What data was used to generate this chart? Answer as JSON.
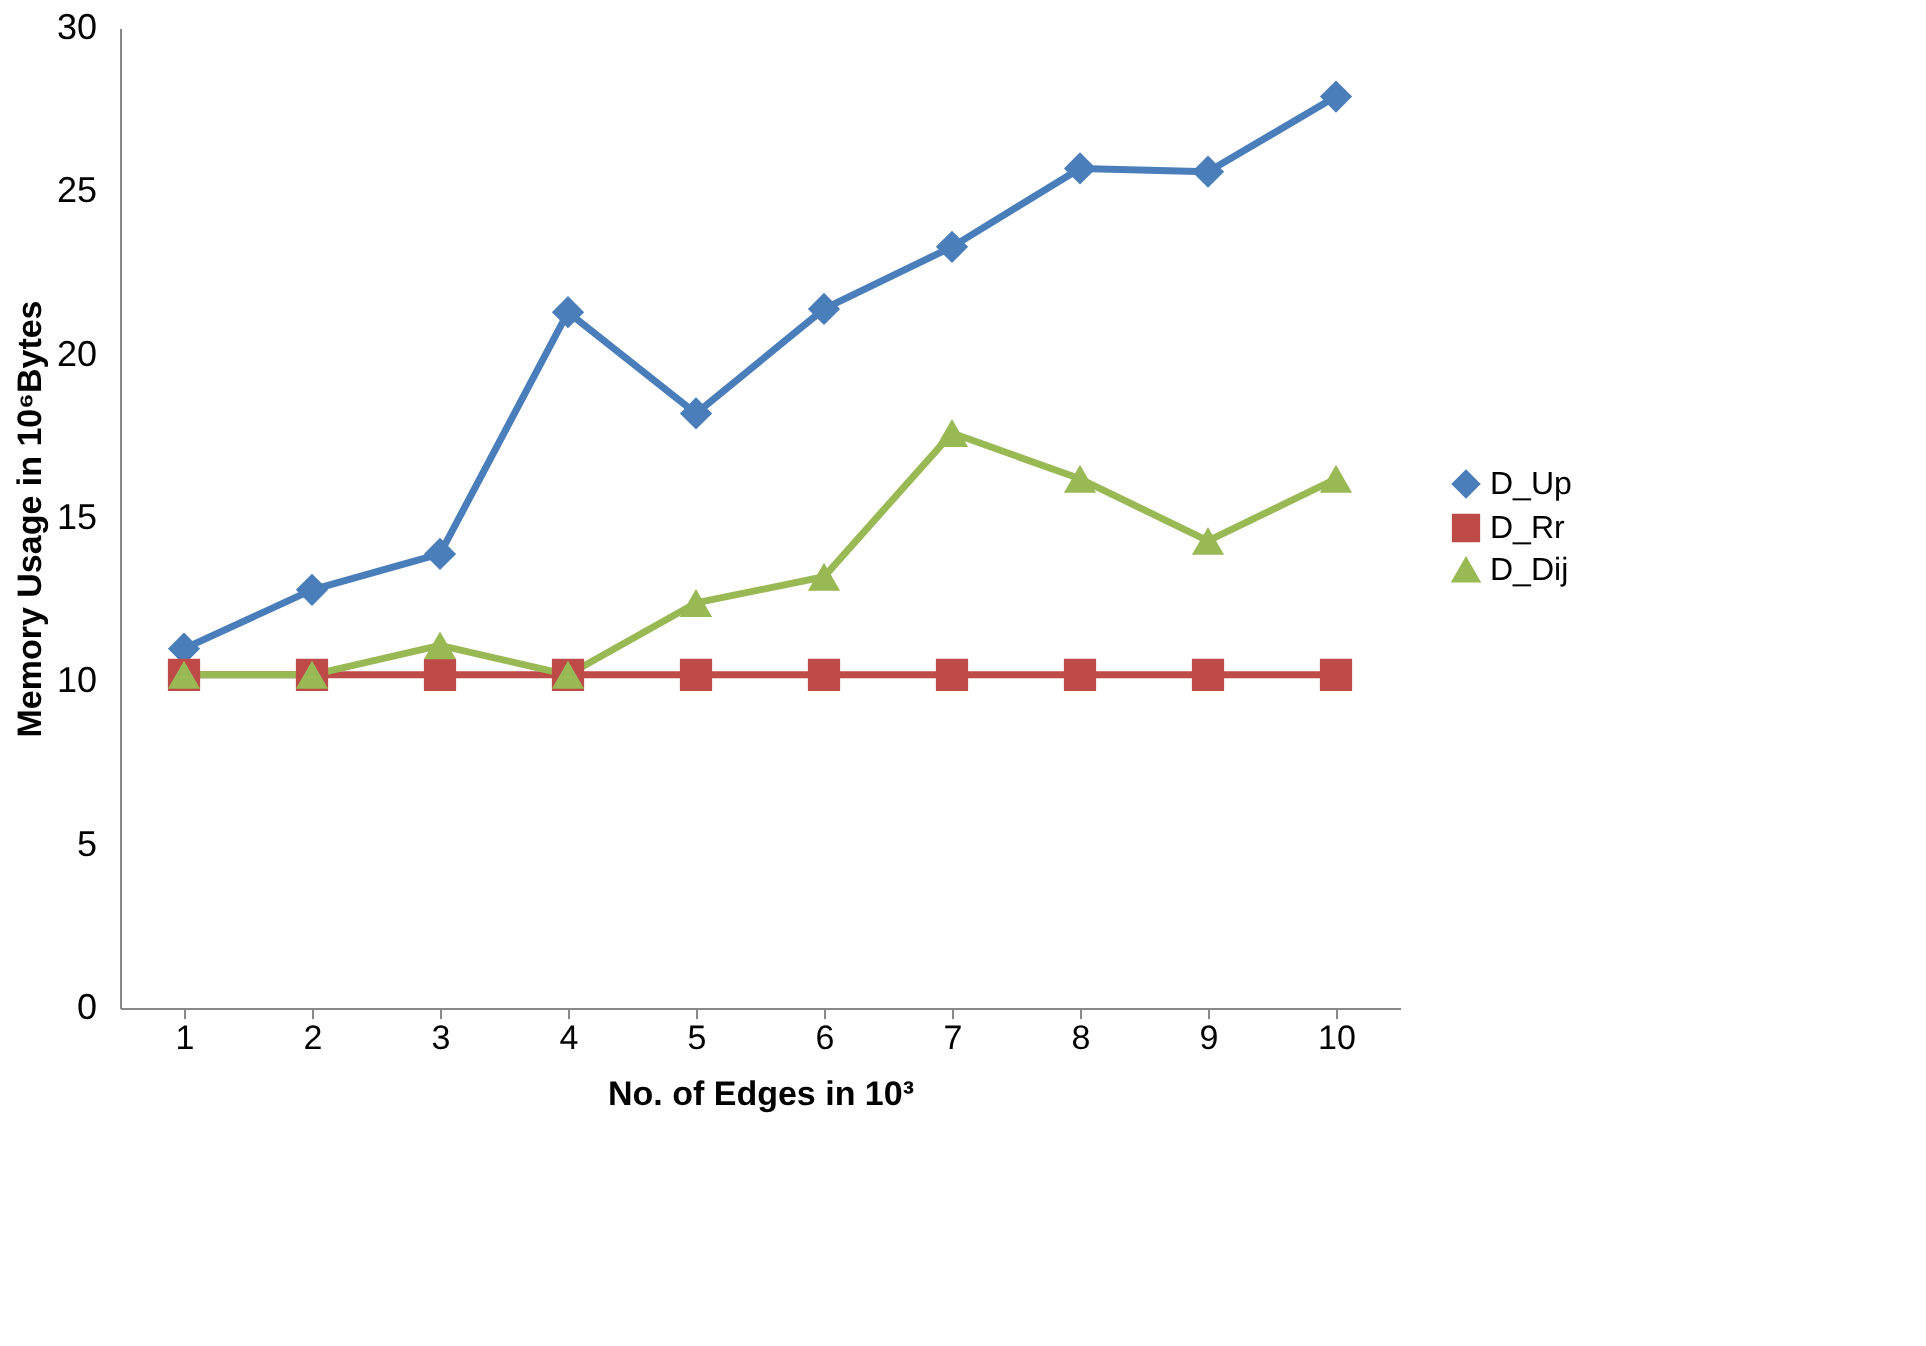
{
  "chart_data": {
    "type": "line",
    "xlabel": "No. of Edges in 10³",
    "ylabel": "Memory Usage in 10⁶Bytes",
    "categories": [
      "1",
      "2",
      "3",
      "4",
      "5",
      "6",
      "7",
      "8",
      "9",
      "10"
    ],
    "series": [
      {
        "name": "D_Up",
        "color": "#4a7ebb",
        "marker": "diamond",
        "values": [
          11.0,
          12.8,
          13.9,
          21.3,
          18.2,
          21.4,
          23.3,
          25.7,
          25.6,
          27.9
        ]
      },
      {
        "name": "D_Rr",
        "color": "#be4b48",
        "marker": "square",
        "values": [
          10.2,
          10.2,
          10.2,
          10.2,
          10.2,
          10.2,
          10.2,
          10.2,
          10.2,
          10.2
        ]
      },
      {
        "name": "D_Dij",
        "color": "#98b954",
        "marker": "triangle",
        "values": [
          10.2,
          10.2,
          11.1,
          10.2,
          12.4,
          13.2,
          17.6,
          16.2,
          14.3,
          16.2
        ]
      }
    ],
    "ylim": [
      0,
      30
    ],
    "yticks": [
      0,
      5,
      10,
      15,
      20,
      25,
      30
    ],
    "grid": false,
    "legend": "right",
    "line_style": "solid"
  }
}
